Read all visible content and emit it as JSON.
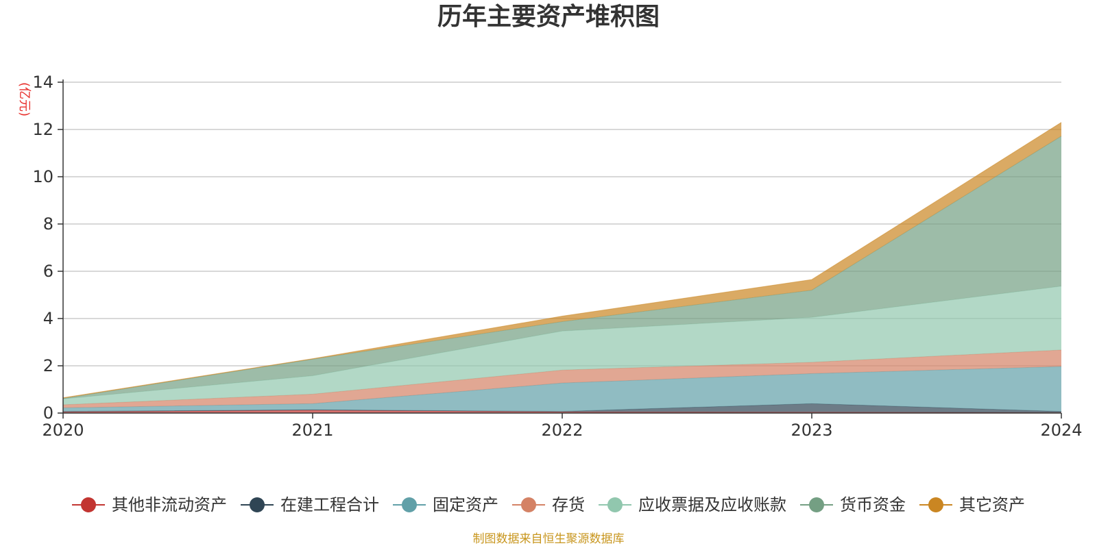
{
  "chart_data": {
    "type": "area",
    "stacked": true,
    "title": "历年主要资产堆积图",
    "ylabel": "(亿元)",
    "xlabel": "",
    "x": [
      "2020",
      "2021",
      "2022",
      "2023",
      "2024"
    ],
    "ylim": [
      0,
      14
    ],
    "yticks": [
      0,
      2,
      4,
      6,
      8,
      10,
      12,
      14
    ],
    "grid": true,
    "legend_position": "bottom",
    "series": [
      {
        "name": "其他非流动资产",
        "color": "#c23531",
        "values": [
          0.05,
          0.12,
          0.05,
          0.04,
          0.02
        ]
      },
      {
        "name": "在建工程合计",
        "color": "#2f4554",
        "values": [
          0.02,
          0.02,
          0.02,
          0.36,
          0.05
        ]
      },
      {
        "name": "固定资产",
        "color": "#61a0a8",
        "values": [
          0.15,
          0.26,
          1.2,
          1.27,
          1.9
        ]
      },
      {
        "name": "存货",
        "color": "#d48265",
        "values": [
          0.13,
          0.4,
          0.55,
          0.48,
          0.7
        ]
      },
      {
        "name": "应收票据及应收账款",
        "color": "#91c7ae",
        "values": [
          0.25,
          0.78,
          1.65,
          1.9,
          2.7
        ]
      },
      {
        "name": "货币资金",
        "color": "#749f83",
        "values": [
          0.02,
          0.7,
          0.4,
          1.15,
          6.35
        ]
      },
      {
        "name": "其它资产",
        "color": "#ca8622",
        "values": [
          0.03,
          0.02,
          0.23,
          0.45,
          0.58
        ]
      }
    ]
  },
  "source_text": "制图数据来自恒生聚源数据库"
}
